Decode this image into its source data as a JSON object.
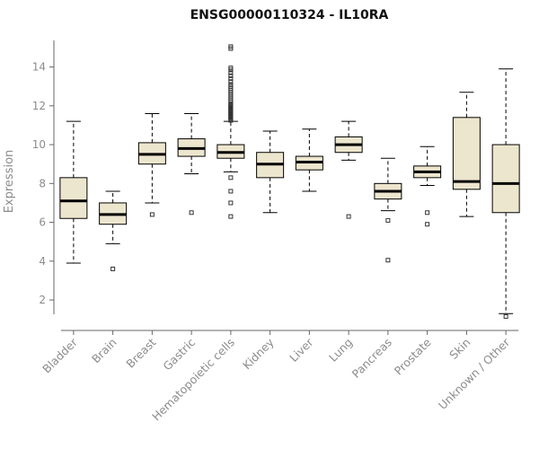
{
  "chart_data": {
    "type": "boxplot",
    "title": "ENSG00000110324 - IL10RA",
    "xlabel": "",
    "ylabel": "Expression",
    "yticks": [
      2,
      4,
      6,
      8,
      10,
      12,
      14
    ],
    "ylim": [
      0.8,
      15.6
    ],
    "grid": false,
    "legend": "none",
    "box_fill": "#ede6ce",
    "box_stroke": "#000000",
    "axis_text_color": "#8c8c8c",
    "axis_line_color": "#666666",
    "categories": [
      "Bladder",
      "Brain",
      "Breast",
      "Gastric",
      "Hematopoietic cells",
      "Kidney",
      "Liver",
      "Lung",
      "Pancreas",
      "Prostate",
      "Skin",
      "Unknown / Other"
    ],
    "boxes": [
      {
        "category": "Bladder",
        "whisker_low": 3.9,
        "q1": 6.2,
        "median": 7.1,
        "q3": 8.3,
        "whisker_high": 11.2,
        "outliers": []
      },
      {
        "category": "Brain",
        "whisker_low": 4.9,
        "q1": 5.9,
        "median": 6.4,
        "q3": 7.0,
        "whisker_high": 7.6,
        "outliers": [
          3.6
        ]
      },
      {
        "category": "Breast",
        "whisker_low": 7.0,
        "q1": 9.0,
        "median": 9.5,
        "q3": 10.1,
        "whisker_high": 11.6,
        "outliers": [
          6.4
        ]
      },
      {
        "category": "Gastric",
        "whisker_low": 8.5,
        "q1": 9.4,
        "median": 9.8,
        "q3": 10.3,
        "whisker_high": 11.6,
        "outliers": [
          6.5
        ]
      },
      {
        "category": "Hematopoietic cells",
        "whisker_low": 8.6,
        "q1": 9.3,
        "median": 9.6,
        "q3": 10.0,
        "whisker_high": 11.2,
        "outliers": [
          6.3,
          7.0,
          7.6,
          8.3,
          11.25,
          11.3,
          11.35,
          11.4,
          11.45,
          11.5,
          11.55,
          11.6,
          11.65,
          11.7,
          11.75,
          11.8,
          11.85,
          11.9,
          11.95,
          12.0,
          12.05,
          12.1,
          12.2,
          12.3,
          12.4,
          12.5,
          12.6,
          12.7,
          12.8,
          12.9,
          13.0,
          13.1,
          13.25,
          13.4,
          13.55,
          13.7,
          13.85,
          13.95,
          14.95,
          15.05
        ]
      },
      {
        "category": "Kidney",
        "whisker_low": 6.5,
        "q1": 8.3,
        "median": 9.0,
        "q3": 9.6,
        "whisker_high": 10.7,
        "outliers": []
      },
      {
        "category": "Liver",
        "whisker_low": 7.6,
        "q1": 8.7,
        "median": 9.1,
        "q3": 9.4,
        "whisker_high": 10.8,
        "outliers": []
      },
      {
        "category": "Lung",
        "whisker_low": 9.2,
        "q1": 9.6,
        "median": 10.0,
        "q3": 10.4,
        "whisker_high": 11.2,
        "outliers": [
          6.3
        ]
      },
      {
        "category": "Pancreas",
        "whisker_low": 6.6,
        "q1": 7.2,
        "median": 7.6,
        "q3": 8.0,
        "whisker_high": 9.3,
        "outliers": [
          4.05,
          6.1
        ]
      },
      {
        "category": "Prostate",
        "whisker_low": 7.9,
        "q1": 8.3,
        "median": 8.6,
        "q3": 8.9,
        "whisker_high": 9.9,
        "outliers": [
          5.9,
          6.5
        ]
      },
      {
        "category": "Skin",
        "whisker_low": 6.3,
        "q1": 7.7,
        "median": 8.1,
        "q3": 11.4,
        "whisker_high": 12.7,
        "outliers": []
      },
      {
        "category": "Unknown / Other",
        "whisker_low": 1.3,
        "q1": 6.5,
        "median": 8.0,
        "q3": 10.0,
        "whisker_high": 13.9,
        "outliers": [
          1.15
        ]
      }
    ]
  }
}
